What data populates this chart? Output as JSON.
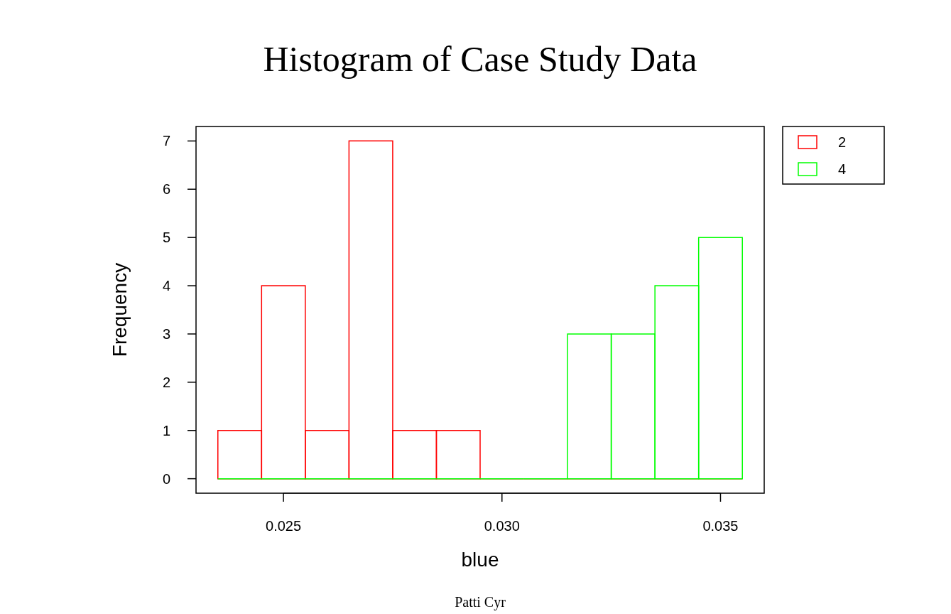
{
  "chart_data": {
    "type": "histogram",
    "title": "Histogram of Case Study Data",
    "xlabel": "blue",
    "ylabel": "Frequency",
    "bins": [
      0.0235,
      0.0245,
      0.0255,
      0.0265,
      0.0275,
      0.0285,
      0.0295,
      0.0305,
      0.0315,
      0.0325,
      0.0335,
      0.0345,
      0.0355
    ],
    "series": [
      {
        "name": "2",
        "color": "#ff0000",
        "values": [
          1,
          4,
          1,
          7,
          1,
          1,
          0,
          0,
          0,
          0,
          0,
          0
        ]
      },
      {
        "name": "4",
        "color": "#00ff00",
        "values": [
          0,
          0,
          0,
          0,
          0,
          0,
          0,
          0,
          3,
          3,
          4,
          5
        ]
      }
    ],
    "xlim": [
      0.023,
      0.036
    ],
    "xticks": [
      {
        "value": 0.025,
        "label": "0.025"
      },
      {
        "value": 0.03,
        "label": "0.030"
      },
      {
        "value": 0.035,
        "label": "0.035"
      }
    ],
    "ylim": [
      -0.3,
      7.3
    ],
    "yticks": [
      0,
      1,
      2,
      3,
      4,
      5,
      6,
      7
    ],
    "legend": "top right",
    "grid": false,
    "annotations": [
      "Patti Cyr"
    ]
  }
}
